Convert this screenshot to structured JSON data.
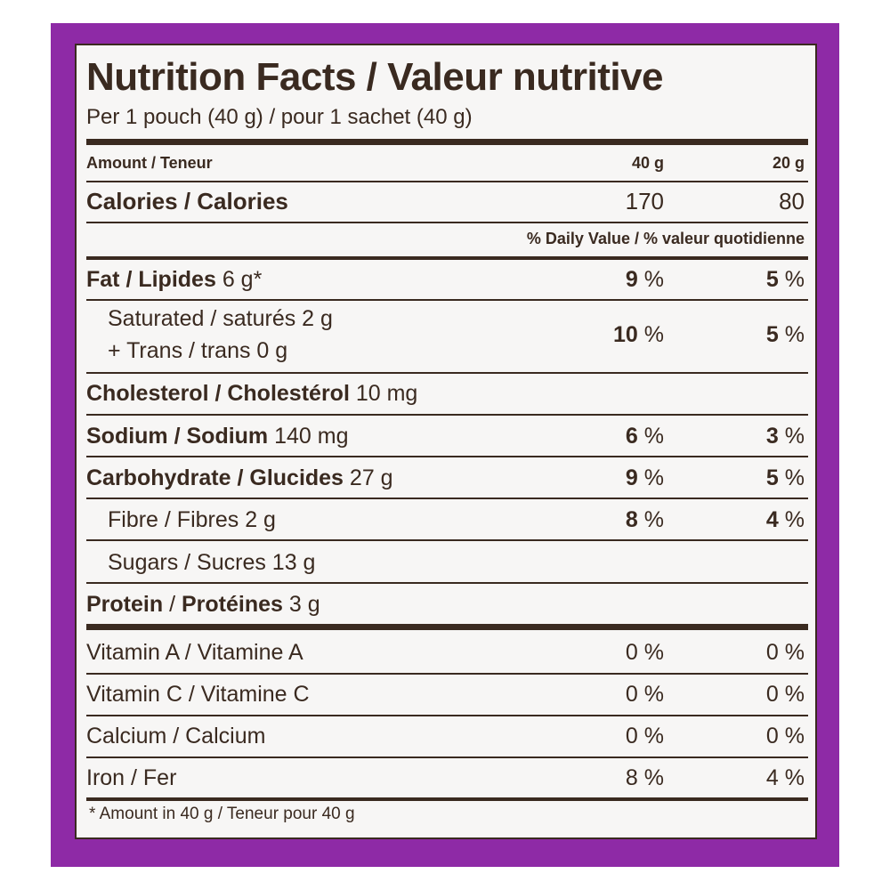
{
  "title": "Nutrition Facts / Valeur nutritive",
  "serving": "Per 1 pouch (40 g) / pour 1 sachet (40 g)",
  "header": {
    "amount": "Amount / Teneur",
    "col1": "40 g",
    "col2": "20 g"
  },
  "calories": {
    "label": "Calories / Calories",
    "col1": "170",
    "col2": "80"
  },
  "daily_value_header": "% Daily Value / % valeur quotidienne",
  "nutrients": {
    "fat": {
      "label": "Fat / Lipides",
      "amount": "6 g*",
      "col1_num": "9",
      "col2_num": "5"
    },
    "saturated": {
      "label": "Saturated / saturés 2 g",
      "label2": "+ Trans / trans 0 g",
      "col1_num": "10",
      "col2_num": "5"
    },
    "cholesterol": {
      "label": "Cholesterol / Cholestérol",
      "amount": "10 mg"
    },
    "sodium": {
      "label": "Sodium / Sodium",
      "amount": "140 mg",
      "col1_num": "6",
      "col2_num": "3"
    },
    "carbohydrate": {
      "label": "Carbohydrate / Glucides",
      "amount": "27 g",
      "col1_num": "9",
      "col2_num": "5"
    },
    "fibre": {
      "label": "Fibre / Fibres 2 g",
      "col1_num": "8",
      "col2_num": "4"
    },
    "sugars": {
      "label": "Sugars / Sucres 13 g"
    },
    "protein": {
      "label": "Protein",
      "label_fr": "Protéines",
      "amount": "3 g"
    }
  },
  "pct_suffix": " %",
  "vitamins": [
    {
      "label": "Vitamin A / Vitamine A",
      "col1": "0 %",
      "col2": "0 %"
    },
    {
      "label": "Vitamin C / Vitamine C",
      "col1": "0 %",
      "col2": "0 %"
    },
    {
      "label": "Calcium / Calcium",
      "col1": "0 %",
      "col2": "0 %"
    },
    {
      "label": "Iron / Fer",
      "col1": "8 %",
      "col2": "4 %"
    }
  ],
  "footnote": "* Amount in 40 g / Teneur pour 40 g",
  "colors": {
    "frame": "#8e2aa6",
    "text": "#3a2a20",
    "panel": "#f7f6f5"
  }
}
